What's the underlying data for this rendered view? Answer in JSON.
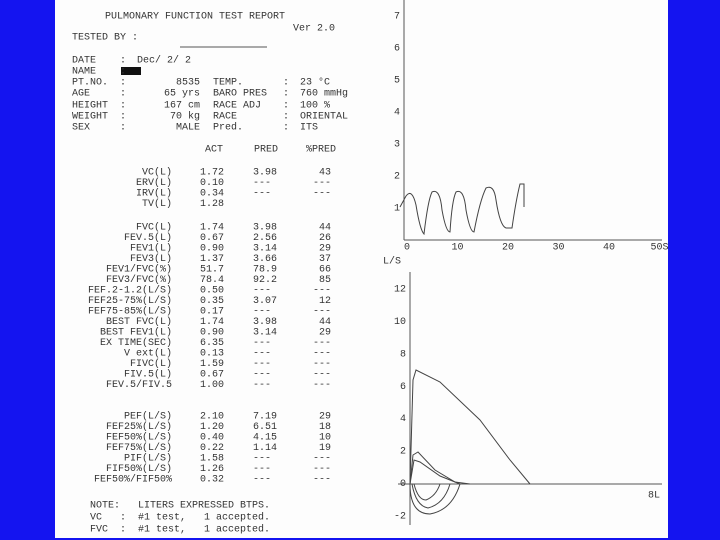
{
  "header": {
    "title": "PULMONARY FUNCTION TEST REPORT",
    "version": "Ver 2.0",
    "tested_by": "TESTED BY :"
  },
  "info_separator": ":",
  "info": [
    [
      "DATE",
      "Dec/ 2/ 2"
    ],
    [
      "NAME"
    ],
    [
      "PT.NO.",
      "8535",
      "TEMP.",
      "23 °C"
    ],
    [
      "AGE",
      "65 yrs",
      "BARO PRES",
      "760 mmHg"
    ],
    [
      "HEIGHT",
      "167 cm",
      "RACE ADJ",
      "100 %"
    ],
    [
      "WEIGHT",
      "70 kg",
      "RACE",
      "ORIENTAL"
    ],
    [
      "SEX",
      "MALE",
      "Pred.",
      "ITS"
    ]
  ],
  "table": {
    "columns": [
      "ACT",
      "PRED",
      "%PRED"
    ],
    "groups": [
      [
        [
          "VC(L)",
          "1.72",
          "3.98",
          "43"
        ],
        [
          "ERV(L)",
          "0.10",
          "---",
          "---"
        ],
        [
          "IRV(L)",
          "0.34",
          "---",
          "---"
        ],
        [
          "TV(L)",
          "1.28"
        ]
      ],
      [
        [
          "FVC(L)",
          "1.74",
          "3.98",
          "44"
        ],
        [
          "FEV.5(L)",
          "0.67",
          "2.56",
          "26"
        ],
        [
          "FEV1(L)",
          "0.90",
          "3.14",
          "29"
        ],
        [
          "FEV3(L)",
          "1.37",
          "3.66",
          "37"
        ],
        [
          "FEV1/FVC(%)",
          "51.7",
          "78.9",
          "66"
        ],
        [
          "FEV3/FVC(%)",
          "78.4",
          "92.2",
          "85"
        ],
        [
          "FEF.2-1.2(L/S)",
          "0.50",
          "---",
          "---"
        ],
        [
          "FEF25-75%(L/S)",
          "0.35",
          "3.07",
          "12"
        ],
        [
          "FEF75-85%(L/S)",
          "0.17",
          "---",
          "---"
        ],
        [
          "BEST FVC(L)",
          "1.74",
          "3.98",
          "44"
        ],
        [
          "BEST FEV1(L)",
          "0.90",
          "3.14",
          "29"
        ],
        [
          "EX TIME(SEC)",
          "6.35",
          "---",
          "---"
        ],
        [
          "V ext(L)",
          "0.13",
          "---",
          "---"
        ],
        [
          "FIVC(L)",
          "1.59",
          "---",
          "---"
        ],
        [
          "FIV.5(L)",
          "0.67",
          "---",
          "---"
        ],
        [
          "FEV.5/FIV.5",
          "1.00",
          "---",
          "---"
        ]
      ],
      [
        [
          "PEF(L/S)",
          "2.10",
          "7.19",
          "29"
        ],
        [
          "FEF25%(L/S)",
          "1.20",
          "6.51",
          "18"
        ],
        [
          "FEF50%(L/S)",
          "0.40",
          "4.15",
          "10"
        ],
        [
          "FEF75%(L/S)",
          "0.22",
          "1.14",
          "19"
        ],
        [
          "PIF(L/S)",
          "1.58",
          "---",
          "---"
        ],
        [
          "FIF50%(L/S)",
          "1.26",
          "---",
          "---"
        ],
        [
          "FEF50%/FIF50%",
          "0.32",
          "---",
          "---"
        ]
      ]
    ]
  },
  "notes": [
    [
      "NOTE:",
      "LITERS EXPRESSED BTPS."
    ],
    [
      "VC   :",
      "#1 test,   1 accepted."
    ],
    [
      "FVC  :",
      "#1 test,   1 accepted."
    ]
  ],
  "spirogram": {
    "y_labels": [
      "1",
      "2",
      "3",
      "4",
      "5",
      "6",
      "7"
    ],
    "x_labels": [
      "0",
      "10",
      "20",
      "30",
      "40",
      "50S"
    ]
  },
  "flow_volume": {
    "y_unit": "L/S",
    "y_labels": [
      "12",
      "10",
      "8",
      "6",
      "4",
      "2",
      "0",
      "-2"
    ],
    "x_label": "8L"
  }
}
